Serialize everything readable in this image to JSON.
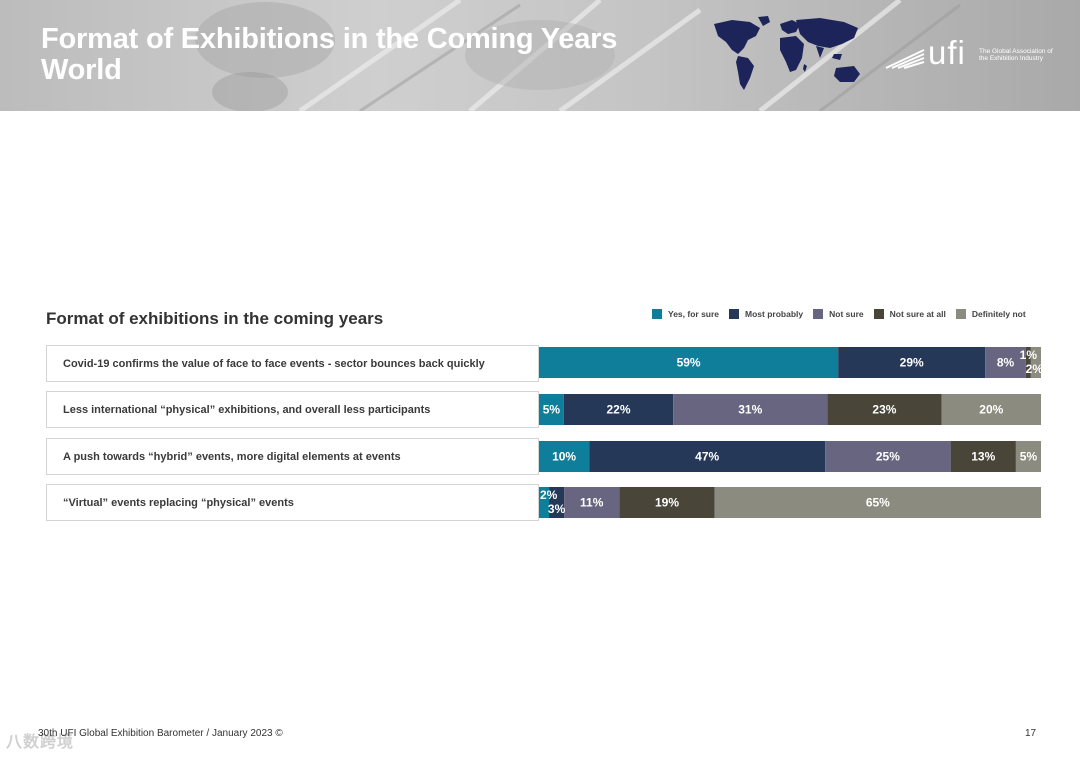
{
  "header": {
    "title_line1": "Format of Exhibitions in the Coming Years",
    "title_line2": "World"
  },
  "logo": {
    "wordmark": "ufi",
    "tagline": "The Global Association of the Exhibition Industry"
  },
  "colors": {
    "yes_for_sure": "#0f7e9b",
    "most_probably": "#253858",
    "not_sure": "#67657f",
    "not_sure_at_all": "#494539",
    "definitely_not": "#8b8b80",
    "map": "#1d2459"
  },
  "chart_data": {
    "type": "bar",
    "orientation": "horizontal",
    "stacked": true,
    "title": "Format of exhibitions in the coming years",
    "categories": [
      "Covid-19 confirms the value of face to face events - sector bounces back quickly",
      "Less international “physical” exhibitions, and overall less participants",
      "A push towards “hybrid” events, more digital elements at events",
      "“Virtual” events replacing “physical” events"
    ],
    "series": [
      {
        "name": "Yes, for sure",
        "values": [
          59,
          5,
          10,
          2
        ]
      },
      {
        "name": "Most probably",
        "values": [
          29,
          22,
          47,
          3
        ]
      },
      {
        "name": "Not sure",
        "values": [
          8,
          31,
          25,
          11
        ]
      },
      {
        "name": "Not sure at all",
        "values": [
          1,
          23,
          13,
          19
        ]
      },
      {
        "name": "Definitely not",
        "values": [
          2,
          20,
          5,
          65
        ]
      }
    ],
    "unit": "%",
    "xlim": [
      0,
      100
    ],
    "grid": false,
    "legend_position": "top-right"
  },
  "footer": {
    "source": "30th UFI Global Exhibition Barometer / January 2023 ©",
    "page": "17",
    "watermark": "八数跨境"
  }
}
